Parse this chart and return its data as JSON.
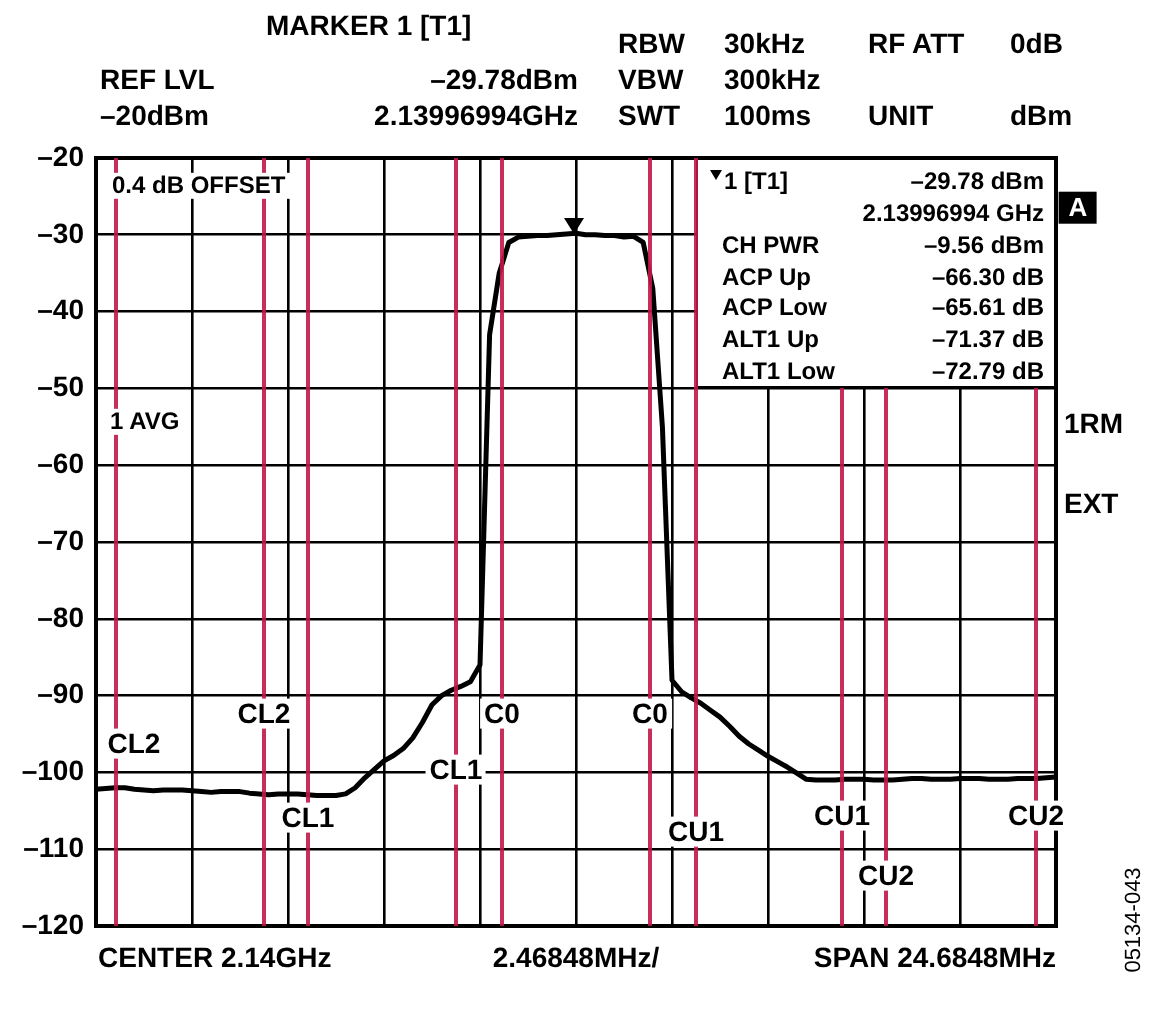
{
  "chart_data": {
    "type": "line",
    "categories": [
      null,
      null,
      null,
      null,
      null,
      null,
      null,
      null,
      null,
      null,
      null,
      null,
      null,
      null,
      null,
      null,
      null,
      null,
      null,
      null,
      null,
      null,
      null,
      null,
      null,
      null,
      null,
      null,
      null,
      null,
      null,
      null,
      null,
      null,
      null,
      null,
      null,
      null,
      null,
      null,
      null,
      null,
      null,
      null,
      null,
      null,
      null,
      null,
      null,
      null,
      null,
      null,
      null,
      null,
      null,
      null,
      null,
      null,
      null,
      null,
      null,
      null,
      null,
      null,
      null,
      null,
      null,
      null,
      null,
      null,
      null,
      null,
      null,
      null,
      null,
      null,
      null,
      null,
      null,
      null,
      null,
      null,
      null,
      null,
      null,
      null,
      null,
      null,
      null,
      null,
      null,
      null,
      null,
      null,
      null,
      null,
      null,
      null,
      null,
      null,
      null
    ],
    "ylim": [
      -120,
      -20
    ],
    "yticks": [
      {
        "value": -20,
        "label": "–20"
      },
      {
        "value": -30,
        "label": "–30"
      },
      {
        "value": -40,
        "label": "–40"
      },
      {
        "value": -50,
        "label": "–50"
      },
      {
        "value": -60,
        "label": "–60"
      },
      {
        "value": -70,
        "label": "–70"
      },
      {
        "value": -80,
        "label": "–80"
      },
      {
        "value": -90,
        "label": "–90"
      },
      {
        "value": -100,
        "label": "–100"
      },
      {
        "value": -110,
        "label": "–110"
      },
      {
        "value": -120,
        "label": "–120"
      }
    ],
    "tick_labels": "y",
    "grid": true,
    "legend": false,
    "series": [
      {
        "color": "#000000",
        "values": [
          -102.2,
          -102.1,
          -102.0,
          -102.0,
          -102.2,
          -102.3,
          -102.4,
          -102.3,
          -102.3,
          -102.3,
          -102.4,
          -102.5,
          -102.6,
          -102.5,
          -102.5,
          -102.5,
          -102.7,
          -102.8,
          -102.9,
          -102.8,
          -102.8,
          -102.8,
          -102.9,
          -103.0,
          -103.0,
          -103.0,
          -102.8,
          -102.0,
          -100.7,
          -99.6,
          -98.5,
          -97.8,
          -96.9,
          -95.5,
          -93.5,
          -91.2,
          -90.0,
          -89.3,
          -88.8,
          -88.2,
          -86.0,
          -43,
          -35,
          -31,
          -30.3,
          -30.2,
          -30.1,
          -30.1,
          -30.0,
          -29.9,
          -29.8,
          -30.0,
          -30.0,
          -30.1,
          -30.1,
          -30.3,
          -30.2,
          -31,
          -37,
          -55,
          -88,
          -89.5,
          -90.3,
          -91.0,
          -91.9,
          -92.8,
          -94.0,
          -95.3,
          -96.3,
          -97.1,
          -97.9,
          -98.6,
          -99.3,
          -100.1,
          -100.9,
          -101.0,
          -101.0,
          -101.0,
          -100.9,
          -100.9,
          -100.9,
          -101.0,
          -101.0,
          -101.0,
          -100.9,
          -100.8,
          -100.8,
          -100.9,
          -100.9,
          -100.9,
          -100.8,
          -100.8,
          -100.8,
          -100.9,
          -100.9,
          -100.9,
          -100.8,
          -100.8,
          -100.8,
          -100.7,
          -100.6
        ]
      }
    ],
    "annotations": [
      "MARKER 1 [T1]",
      "REF LVL",
      "–20dBm",
      "–29.78dBm",
      "2.13996994GHz",
      "RBW",
      "30kHz",
      "RF ATT",
      "0dB",
      "VBW",
      "300kHz",
      "SWT",
      "100ms",
      "UNIT",
      "dBm",
      "0.4 dB OFFSET",
      "1 AVG",
      "1 [T1]",
      "–29.78 dBm",
      "2.13996994 GHz",
      "CH PWR",
      "–9.56 dBm",
      "ACP Up",
      "–66.30 dB",
      "ACP Low",
      "–65.61 dB",
      "ALT1 Up",
      "–71.37 dB",
      "ALT1 Low",
      "–72.79 dB",
      "A",
      "1RM",
      "EXT",
      "CENTER 2.14GHz",
      "2.46848MHz/",
      "SPAN 24.6848MHz",
      "05134-043",
      "CL2",
      "CL2",
      "CL1",
      "CL1",
      "C0",
      "C0",
      "CU1",
      "CU1",
      "CU2",
      "CU2"
    ]
  }
}
